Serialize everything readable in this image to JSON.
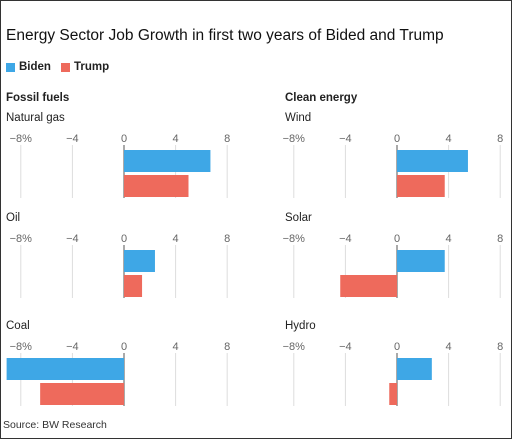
{
  "title": "Energy Sector Job Growth in first two years of Bided and Trump",
  "legend": [
    {
      "label": "Biden",
      "color": "#3ea7e6"
    },
    {
      "label": "Trump",
      "color": "#ee6a5c"
    }
  ],
  "groups": {
    "fossil": "Fossil fuels",
    "clean": "Clean energy"
  },
  "source": "Source: BW Research",
  "chart_data": {
    "type": "bar",
    "orientation": "horizontal",
    "title": "Energy Sector Job Growth in first two years of Bided and Trump",
    "series_names": [
      "Biden",
      "Trump"
    ],
    "xlim": [
      -9,
      8
    ],
    "ticks": [
      -8,
      -4,
      0,
      4,
      8
    ],
    "tick_labels": [
      "−8%",
      "−4",
      "0",
      "4",
      "8"
    ],
    "grid": true,
    "legend_position": "top-left",
    "panels": [
      {
        "group": "Fossil fuels",
        "name": "Natural gas",
        "biden": 6.7,
        "trump": 5.0
      },
      {
        "group": "Fossil fuels",
        "name": "Oil",
        "biden": 2.4,
        "trump": 1.4
      },
      {
        "group": "Fossil fuels",
        "name": "Coal",
        "biden": -9.1,
        "trump": -6.5
      },
      {
        "group": "Clean energy",
        "name": "Wind",
        "biden": 5.5,
        "trump": 3.7
      },
      {
        "group": "Clean energy",
        "name": "Solar",
        "biden": 3.7,
        "trump": -4.4
      },
      {
        "group": "Clean energy",
        "name": "Hydro",
        "biden": 2.7,
        "trump": -0.6
      }
    ]
  }
}
